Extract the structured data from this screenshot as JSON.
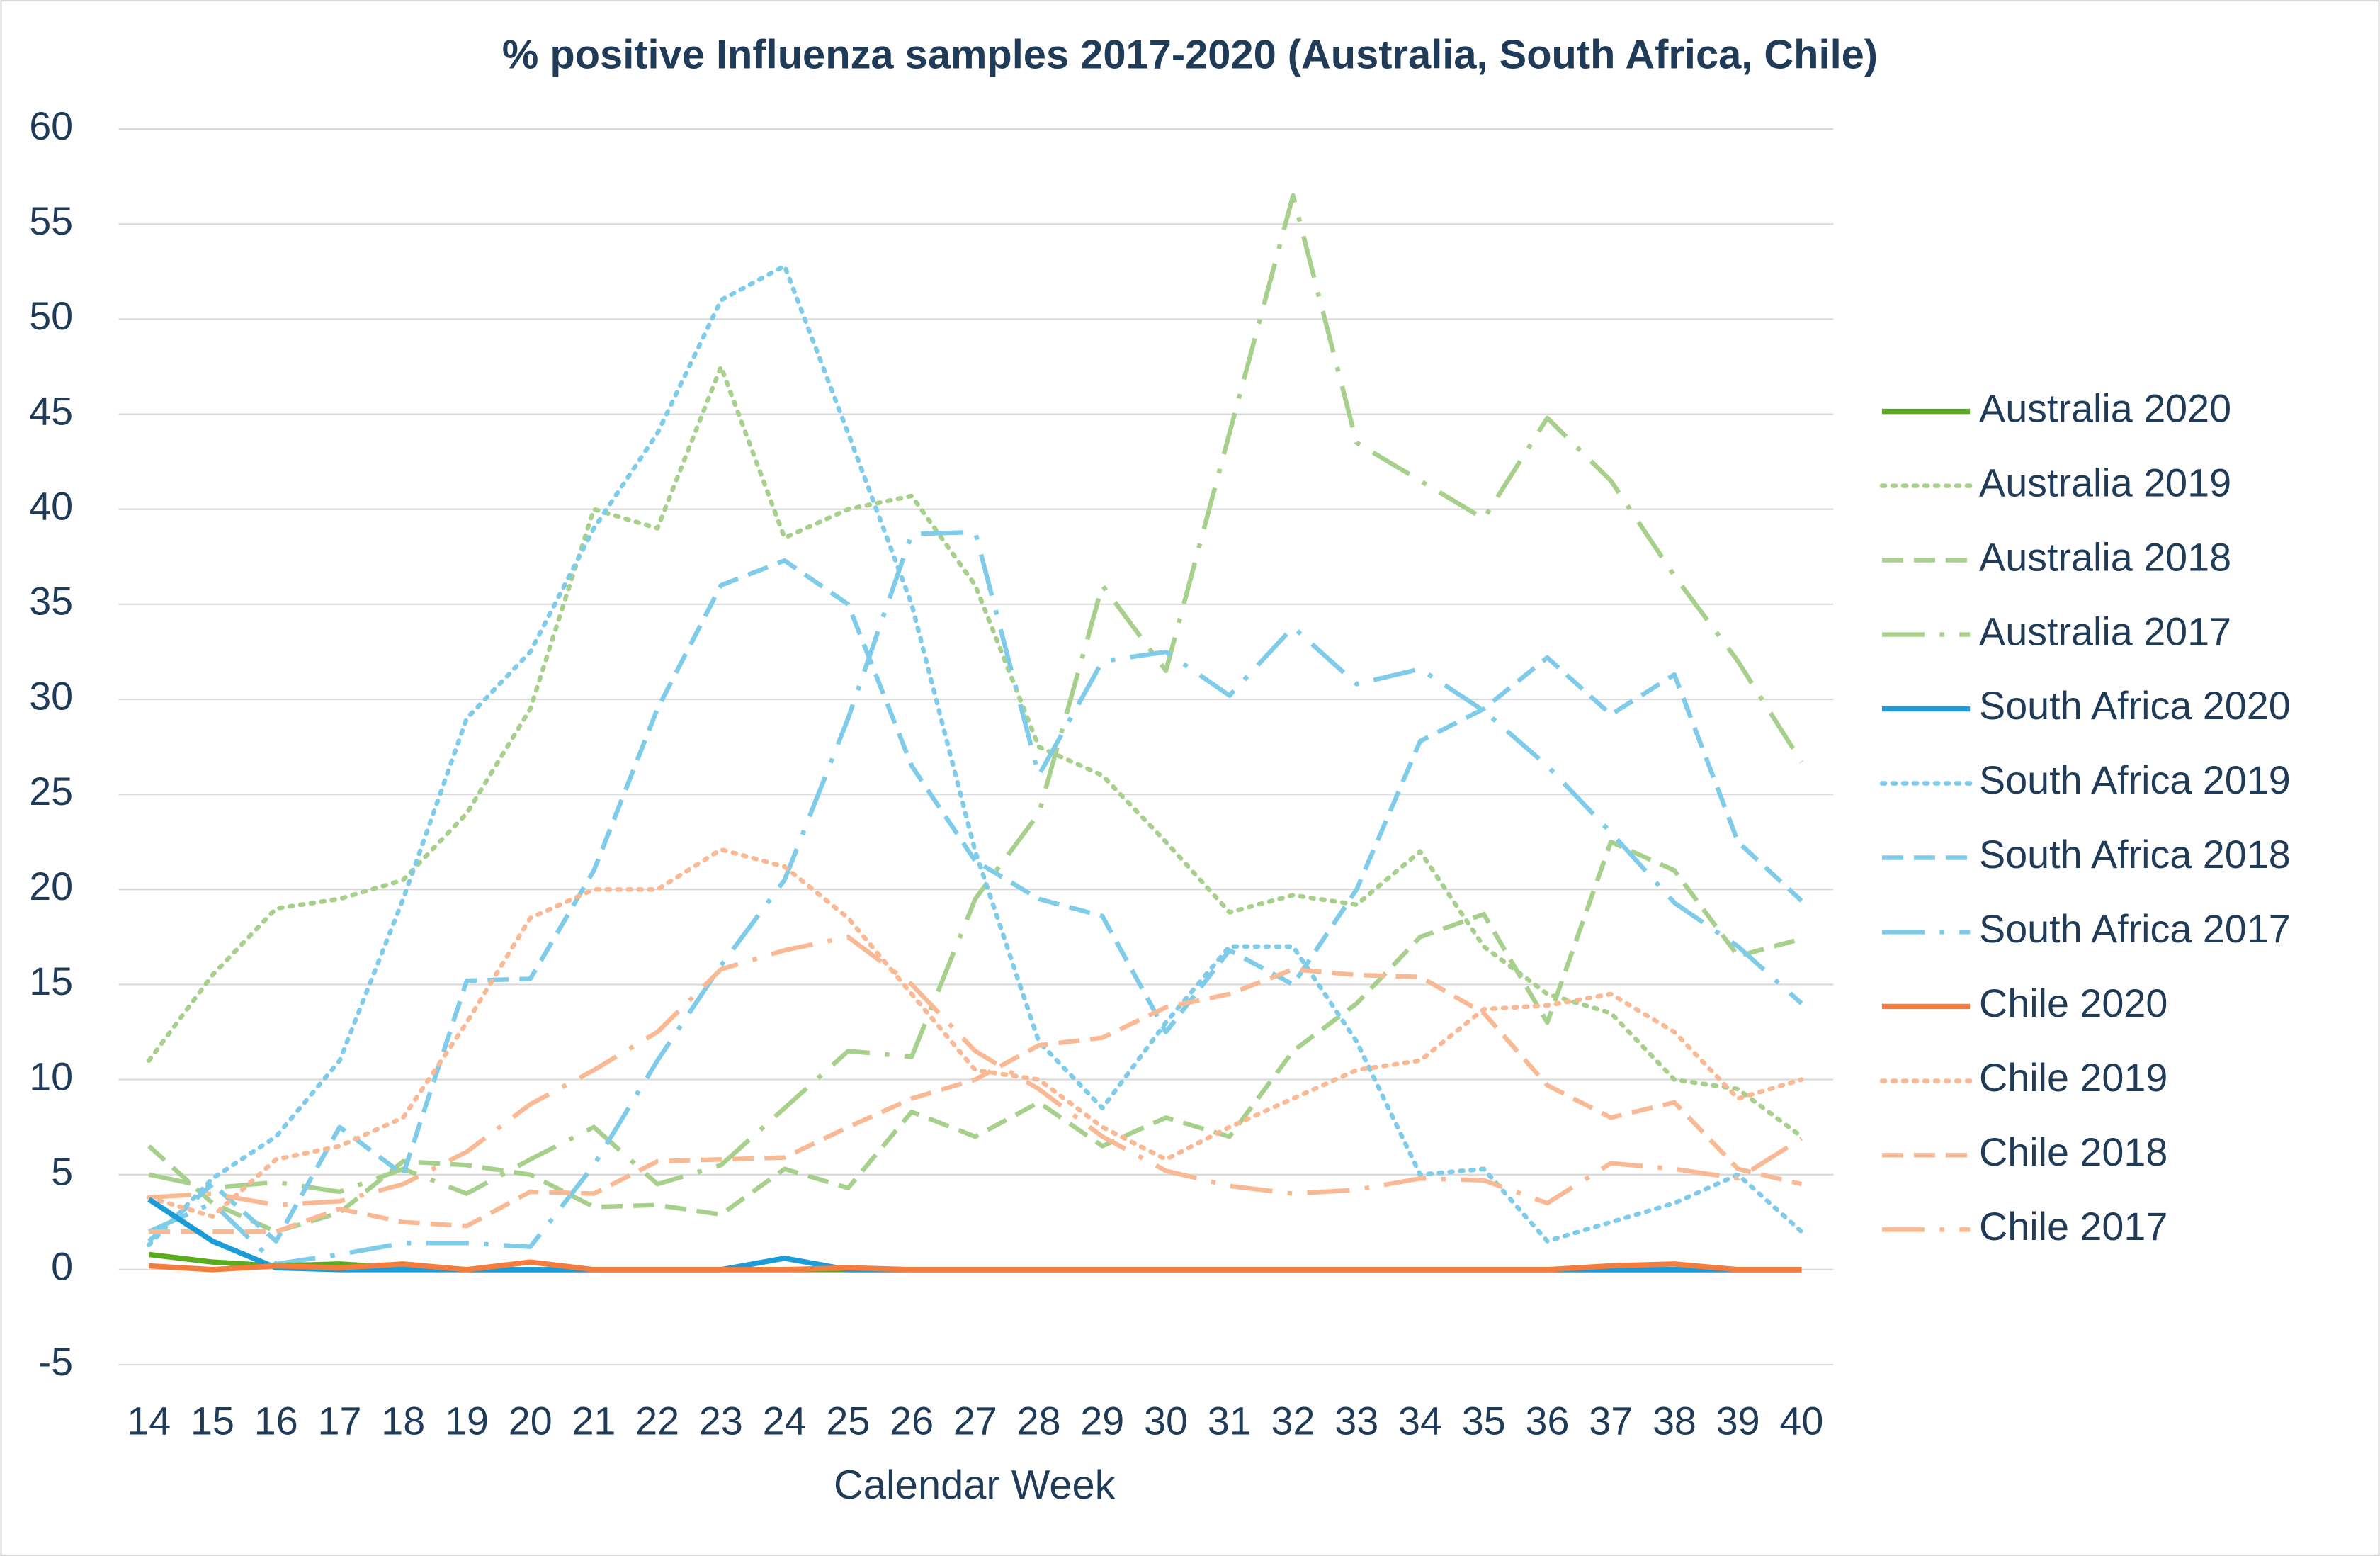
{
  "chart_data": {
    "type": "line",
    "title": "% positive Influenza samples 2017-2020 (Australia, South Africa, Chile)",
    "x_label": "Calendar Week",
    "x": [
      14,
      15,
      16,
      17,
      18,
      19,
      20,
      21,
      22,
      23,
      24,
      25,
      26,
      27,
      28,
      29,
      30,
      31,
      32,
      33,
      34,
      35,
      36,
      37,
      38,
      39,
      40
    ],
    "xlim": [
      14,
      40
    ],
    "xticks": [
      14,
      15,
      16,
      17,
      18,
      19,
      20,
      21,
      22,
      23,
      24,
      25,
      26,
      27,
      28,
      29,
      30,
      31,
      32,
      33,
      34,
      35,
      36,
      37,
      38,
      39,
      40
    ],
    "ylim": [
      -5,
      60
    ],
    "yticks": [
      -5,
      0,
      5,
      10,
      15,
      20,
      25,
      30,
      35,
      40,
      45,
      50,
      55,
      60
    ],
    "grid": true,
    "legend": "right",
    "series": [
      {
        "name": "Australia 2020",
        "color": "#5aac1e",
        "dash": "solid",
        "values": [
          0.8,
          0.4,
          0.2,
          0.3,
          0.1,
          0,
          0,
          0,
          0,
          0,
          0,
          0,
          0,
          0,
          0,
          0,
          0,
          0,
          0,
          0,
          0,
          0,
          0,
          0,
          0,
          0,
          0
        ]
      },
      {
        "name": "Australia 2019",
        "color": "#a8d08d",
        "dash": "dotted",
        "values": [
          11,
          15.5,
          19,
          19.5,
          20.5,
          24,
          29.5,
          40,
          39,
          47.5,
          38.5,
          40,
          40.7,
          36,
          27.5,
          26,
          22.5,
          18.8,
          19.7,
          19.2,
          22,
          17,
          14.5,
          13.5,
          10,
          9.5,
          7
        ]
      },
      {
        "name": "Australia 2018",
        "color": "#a8d08d",
        "dash": "dashed",
        "values": [
          6.5,
          3.5,
          2,
          3,
          5.7,
          5.5,
          5,
          3.3,
          3.4,
          2.9,
          5.3,
          4.3,
          8.3,
          7,
          8.8,
          6.5,
          8,
          7,
          11.5,
          14,
          17.5,
          18.7,
          13,
          22.5,
          21,
          16.5,
          17.4
        ]
      },
      {
        "name": "Australia 2017",
        "color": "#a8d08d",
        "dash": "dashdot",
        "values": [
          5,
          4.3,
          4.6,
          4.1,
          5.3,
          4,
          5.8,
          7.5,
          4.5,
          5.5,
          8.5,
          11.5,
          11.2,
          19.5,
          24,
          36,
          31.5,
          44,
          56.5,
          43.5,
          41.5,
          39.5,
          44.8,
          41.5,
          36.5,
          32,
          26.7
        ]
      },
      {
        "name": "South Africa 2020",
        "color": "#1b9bd7",
        "dash": "solid",
        "values": [
          3.7,
          1.5,
          0.1,
          0,
          0,
          0,
          0,
          0,
          0,
          0,
          0.6,
          0,
          0,
          0,
          0,
          0,
          0,
          0,
          0,
          0,
          0,
          0,
          0,
          0,
          0,
          0,
          0
        ]
      },
      {
        "name": "South Africa 2019",
        "color": "#7ecbea",
        "dash": "dotted",
        "values": [
          1.3,
          4.8,
          7,
          11,
          19.5,
          29,
          32.5,
          39,
          44,
          51,
          52.8,
          44,
          35,
          22,
          12,
          8.5,
          13,
          17,
          17,
          12,
          5,
          5.3,
          1.5,
          2.5,
          3.5,
          5,
          2
        ]
      },
      {
        "name": "South Africa 2018",
        "color": "#7ecbea",
        "dash": "dashed",
        "values": [
          1.5,
          4.5,
          1.5,
          7.5,
          5,
          15.2,
          15.3,
          21,
          29.5,
          36,
          37.3,
          35,
          26.5,
          21.5,
          19.5,
          18.6,
          12.5,
          16.8,
          15,
          20,
          27.8,
          29.5,
          32.2,
          29.2,
          31.3,
          22.5,
          19.4
        ]
      },
      {
        "name": "South Africa 2017",
        "color": "#7ecbea",
        "dash": "dashdot",
        "values": [
          2,
          3.5,
          0.3,
          0.8,
          1.4,
          1.4,
          1.2,
          5.5,
          11,
          16,
          20.5,
          29,
          38.7,
          38.8,
          26,
          32,
          32.5,
          30.2,
          33.8,
          30.8,
          31.6,
          29.4,
          26.5,
          23,
          19.3,
          17,
          14
        ]
      },
      {
        "name": "Chile 2020",
        "color": "#f47c3c",
        "dash": "solid",
        "values": [
          0.2,
          0,
          0.2,
          0.1,
          0.3,
          0,
          0.4,
          0,
          0,
          0,
          0,
          0.1,
          0,
          0,
          0,
          0,
          0,
          0,
          0,
          0,
          0,
          0,
          0,
          0.2,
          0.3,
          0,
          0
        ]
      },
      {
        "name": "Chile 2019",
        "color": "#f9b994",
        "dash": "dotted",
        "values": [
          3.8,
          2.8,
          5.8,
          6.5,
          8,
          13,
          18.5,
          20,
          20,
          22.1,
          21.2,
          18.5,
          14.5,
          10.5,
          10,
          7.5,
          5.8,
          7.5,
          9,
          10.5,
          11,
          13.7,
          13.9,
          14.5,
          12.5,
          9,
          10
        ]
      },
      {
        "name": "Chile 2018",
        "color": "#f9b994",
        "dash": "dashed",
        "values": [
          2,
          2,
          2,
          3.2,
          2.5,
          2.3,
          4.1,
          4,
          5.7,
          5.8,
          5.9,
          7.5,
          9,
          10,
          11.8,
          12.2,
          13.8,
          14.5,
          15.8,
          15.5,
          15.4,
          13.5,
          9.7,
          8,
          8.8,
          5.3,
          4.5
        ]
      },
      {
        "name": "Chile 2017",
        "color": "#f9b994",
        "dash": "dashdot",
        "values": [
          3.8,
          4,
          3.4,
          3.6,
          4.5,
          6.2,
          8.7,
          10.5,
          12.5,
          15.8,
          16.8,
          17.5,
          15,
          11.5,
          9.5,
          7,
          5.2,
          4.4,
          4,
          4.2,
          4.8,
          4.7,
          3.5,
          5.6,
          5.3,
          4.8,
          6.9
        ]
      }
    ]
  }
}
